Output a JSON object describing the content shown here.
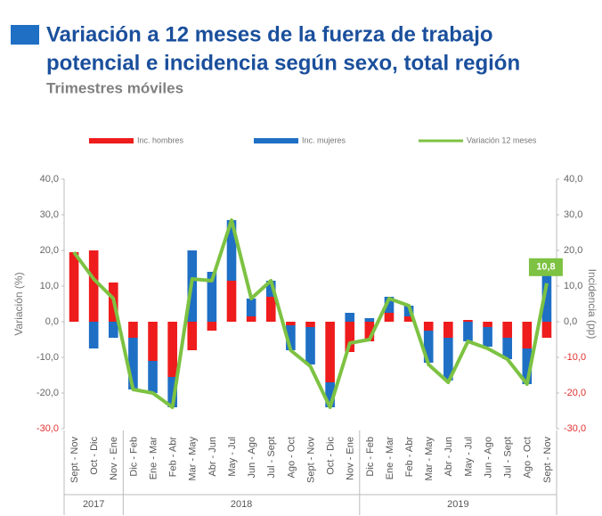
{
  "chart_data": {
    "type": "bar-line",
    "title_lines": [
      "Variación a 12 meses de la fuerza de trabajo",
      "potencial e incidencia según sexo, total región"
    ],
    "subtitle": "Trimestres móviles",
    "y_label": "Variación (%)",
    "y2_label": "Incidencia (pp)",
    "categories": [
      "Sept - Nov",
      "Oct - Dic",
      "Nov - Ene",
      "Dic - Feb",
      "Ene - Mar",
      "Feb - Abr",
      "Mar - May",
      "Abr - Jun",
      "May - Jul",
      "Jun - Ago",
      "Jul - Sept",
      "Ago - Oct",
      "Sept - Nov",
      "Oct - Dic",
      "Nov - Ene",
      "Dic - Feb",
      "Ene - Mar",
      "Feb - Abr",
      "Mar - May",
      "Abr - Jun",
      "May - Jul",
      "Jun - Ago",
      "Jul - Sept",
      "Ago - Oct",
      "Sept - Nov"
    ],
    "x_groups": [
      {
        "label": "2017",
        "span": 3
      },
      {
        "label": "2018",
        "span": 12
      },
      {
        "label": "2019",
        "span": 10
      }
    ],
    "series": [
      {
        "name": "Inc. hombres",
        "type": "bar",
        "axis": "y2",
        "color": "#ee1c1c",
        "values": [
          19.5,
          20,
          11,
          -4.5,
          -11,
          -15.5,
          -8,
          -2.5,
          11.5,
          1.5,
          7,
          -1,
          -1.5,
          -17,
          -8.5,
          -5.5,
          2.5,
          1.5,
          -2.5,
          -4.5,
          0.5,
          -1.5,
          -4.5,
          -7.5,
          -4.5
        ]
      },
      {
        "name": "Inc. mujeres",
        "type": "bar",
        "axis": "y2",
        "color": "#1f6fc5",
        "values": [
          0,
          -7.5,
          -4.5,
          -14.5,
          -9,
          -8.5,
          20,
          14,
          17,
          5,
          4.5,
          -7,
          -10.5,
          -7,
          2.5,
          1,
          4.5,
          3,
          -9,
          -12,
          -5.5,
          -5.5,
          -6,
          -10,
          15
        ]
      },
      {
        "name": "Variación 12 meses",
        "type": "line",
        "color": "#7dc242",
        "values": [
          19.5,
          12,
          6.5,
          -19,
          -20,
          -24,
          12,
          11.5,
          28.5,
          6.5,
          11.5,
          -8,
          -12.5,
          -24,
          -6,
          -5,
          6.5,
          4.5,
          -12,
          -17,
          -5.5,
          -7.5,
          -10.5,
          -17.5,
          10.8
        ],
        "value_labels": [
          null,
          null,
          null,
          null,
          null,
          null,
          null,
          null,
          null,
          null,
          null,
          null,
          null,
          null,
          null,
          null,
          null,
          null,
          null,
          null,
          null,
          null,
          null,
          null,
          "10,8"
        ]
      }
    ],
    "ylim": [
      -30,
      40
    ],
    "yticks": [
      {
        "value": 40,
        "label": "40,0"
      },
      {
        "value": 30,
        "label": "30,0"
      },
      {
        "value": 20,
        "label": "20,0"
      },
      {
        "value": 10,
        "label": "10,0"
      },
      {
        "value": 0,
        "label": "0,0"
      },
      {
        "value": -10,
        "label": "-10,0"
      },
      {
        "value": -20,
        "label": "-20,0"
      },
      {
        "value": -30,
        "label": "-30,0"
      }
    ],
    "y2lim": [
      -30,
      40
    ],
    "y2ticks": [
      {
        "value": 40,
        "label": "40,0"
      },
      {
        "value": 30,
        "label": "30,0"
      },
      {
        "value": 20,
        "label": "20,0"
      },
      {
        "value": 10,
        "label": "10,0"
      },
      {
        "value": 0,
        "label": "0,0"
      },
      {
        "value": -10,
        "label": "-10,0"
      },
      {
        "value": -20,
        "label": "-20,0"
      },
      {
        "value": -30,
        "label": "-30,0"
      }
    ]
  }
}
